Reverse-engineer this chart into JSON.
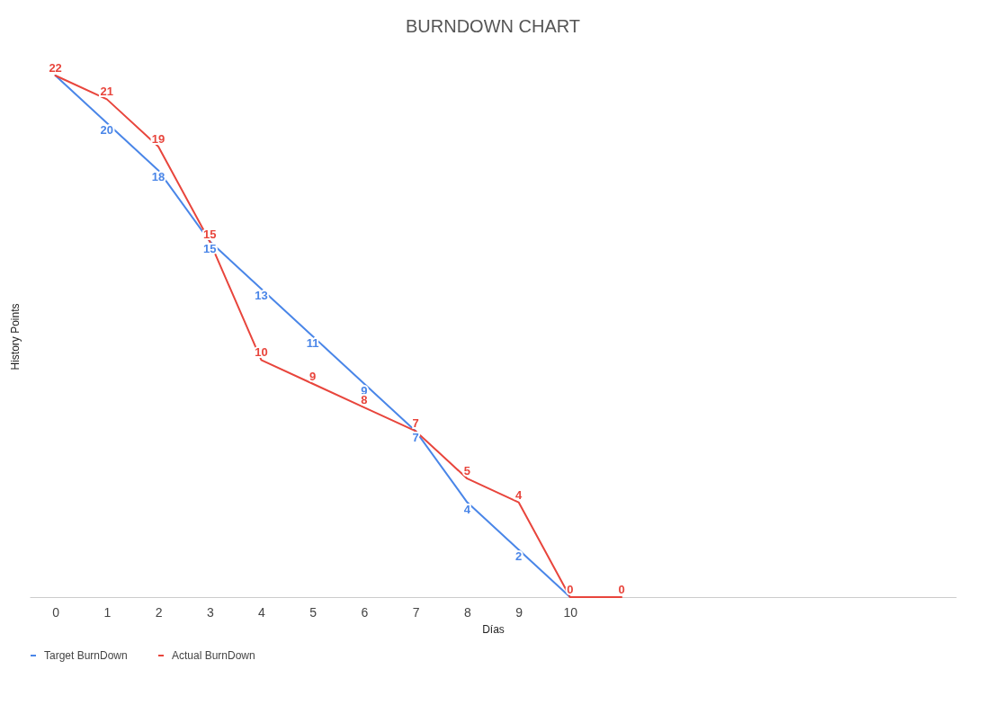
{
  "chart_data": {
    "type": "line",
    "title": "BURNDOWN CHART",
    "xlabel": "Días",
    "ylabel": "History Points",
    "categories": [
      "0",
      "1",
      "2",
      "3",
      "4",
      "5",
      "6",
      "7",
      "8",
      "9",
      "10",
      null,
      null,
      null,
      null,
      null,
      null,
      null
    ],
    "series": [
      {
        "name": "Target BurnDown",
        "color": "#4a86e8",
        "values": [
          22,
          20,
          18,
          15,
          13,
          11,
          9,
          7,
          4,
          2,
          0,
          null,
          null,
          null,
          null,
          null,
          null,
          null
        ],
        "value_labels": [
          null,
          "20",
          "18",
          "15",
          "13",
          "11",
          "9",
          "7",
          "4",
          "2",
          null,
          null,
          null,
          null,
          null,
          null,
          null,
          null
        ]
      },
      {
        "name": "Actual BurnDown",
        "color": "#e8453c",
        "values": [
          22,
          21,
          19,
          15,
          10,
          9,
          8,
          7,
          5,
          4,
          0,
          0,
          null,
          null,
          null,
          null,
          null,
          null
        ],
        "value_labels": [
          "22",
          "21",
          "19",
          "15",
          "10",
          "9",
          "8",
          "7",
          "5",
          "4",
          "0",
          "0",
          null,
          null,
          null,
          null,
          null,
          null
        ]
      }
    ],
    "grid": false,
    "legend": "bottom",
    "tick_labels": "x",
    "marker": "none",
    "line_style": "solid"
  }
}
